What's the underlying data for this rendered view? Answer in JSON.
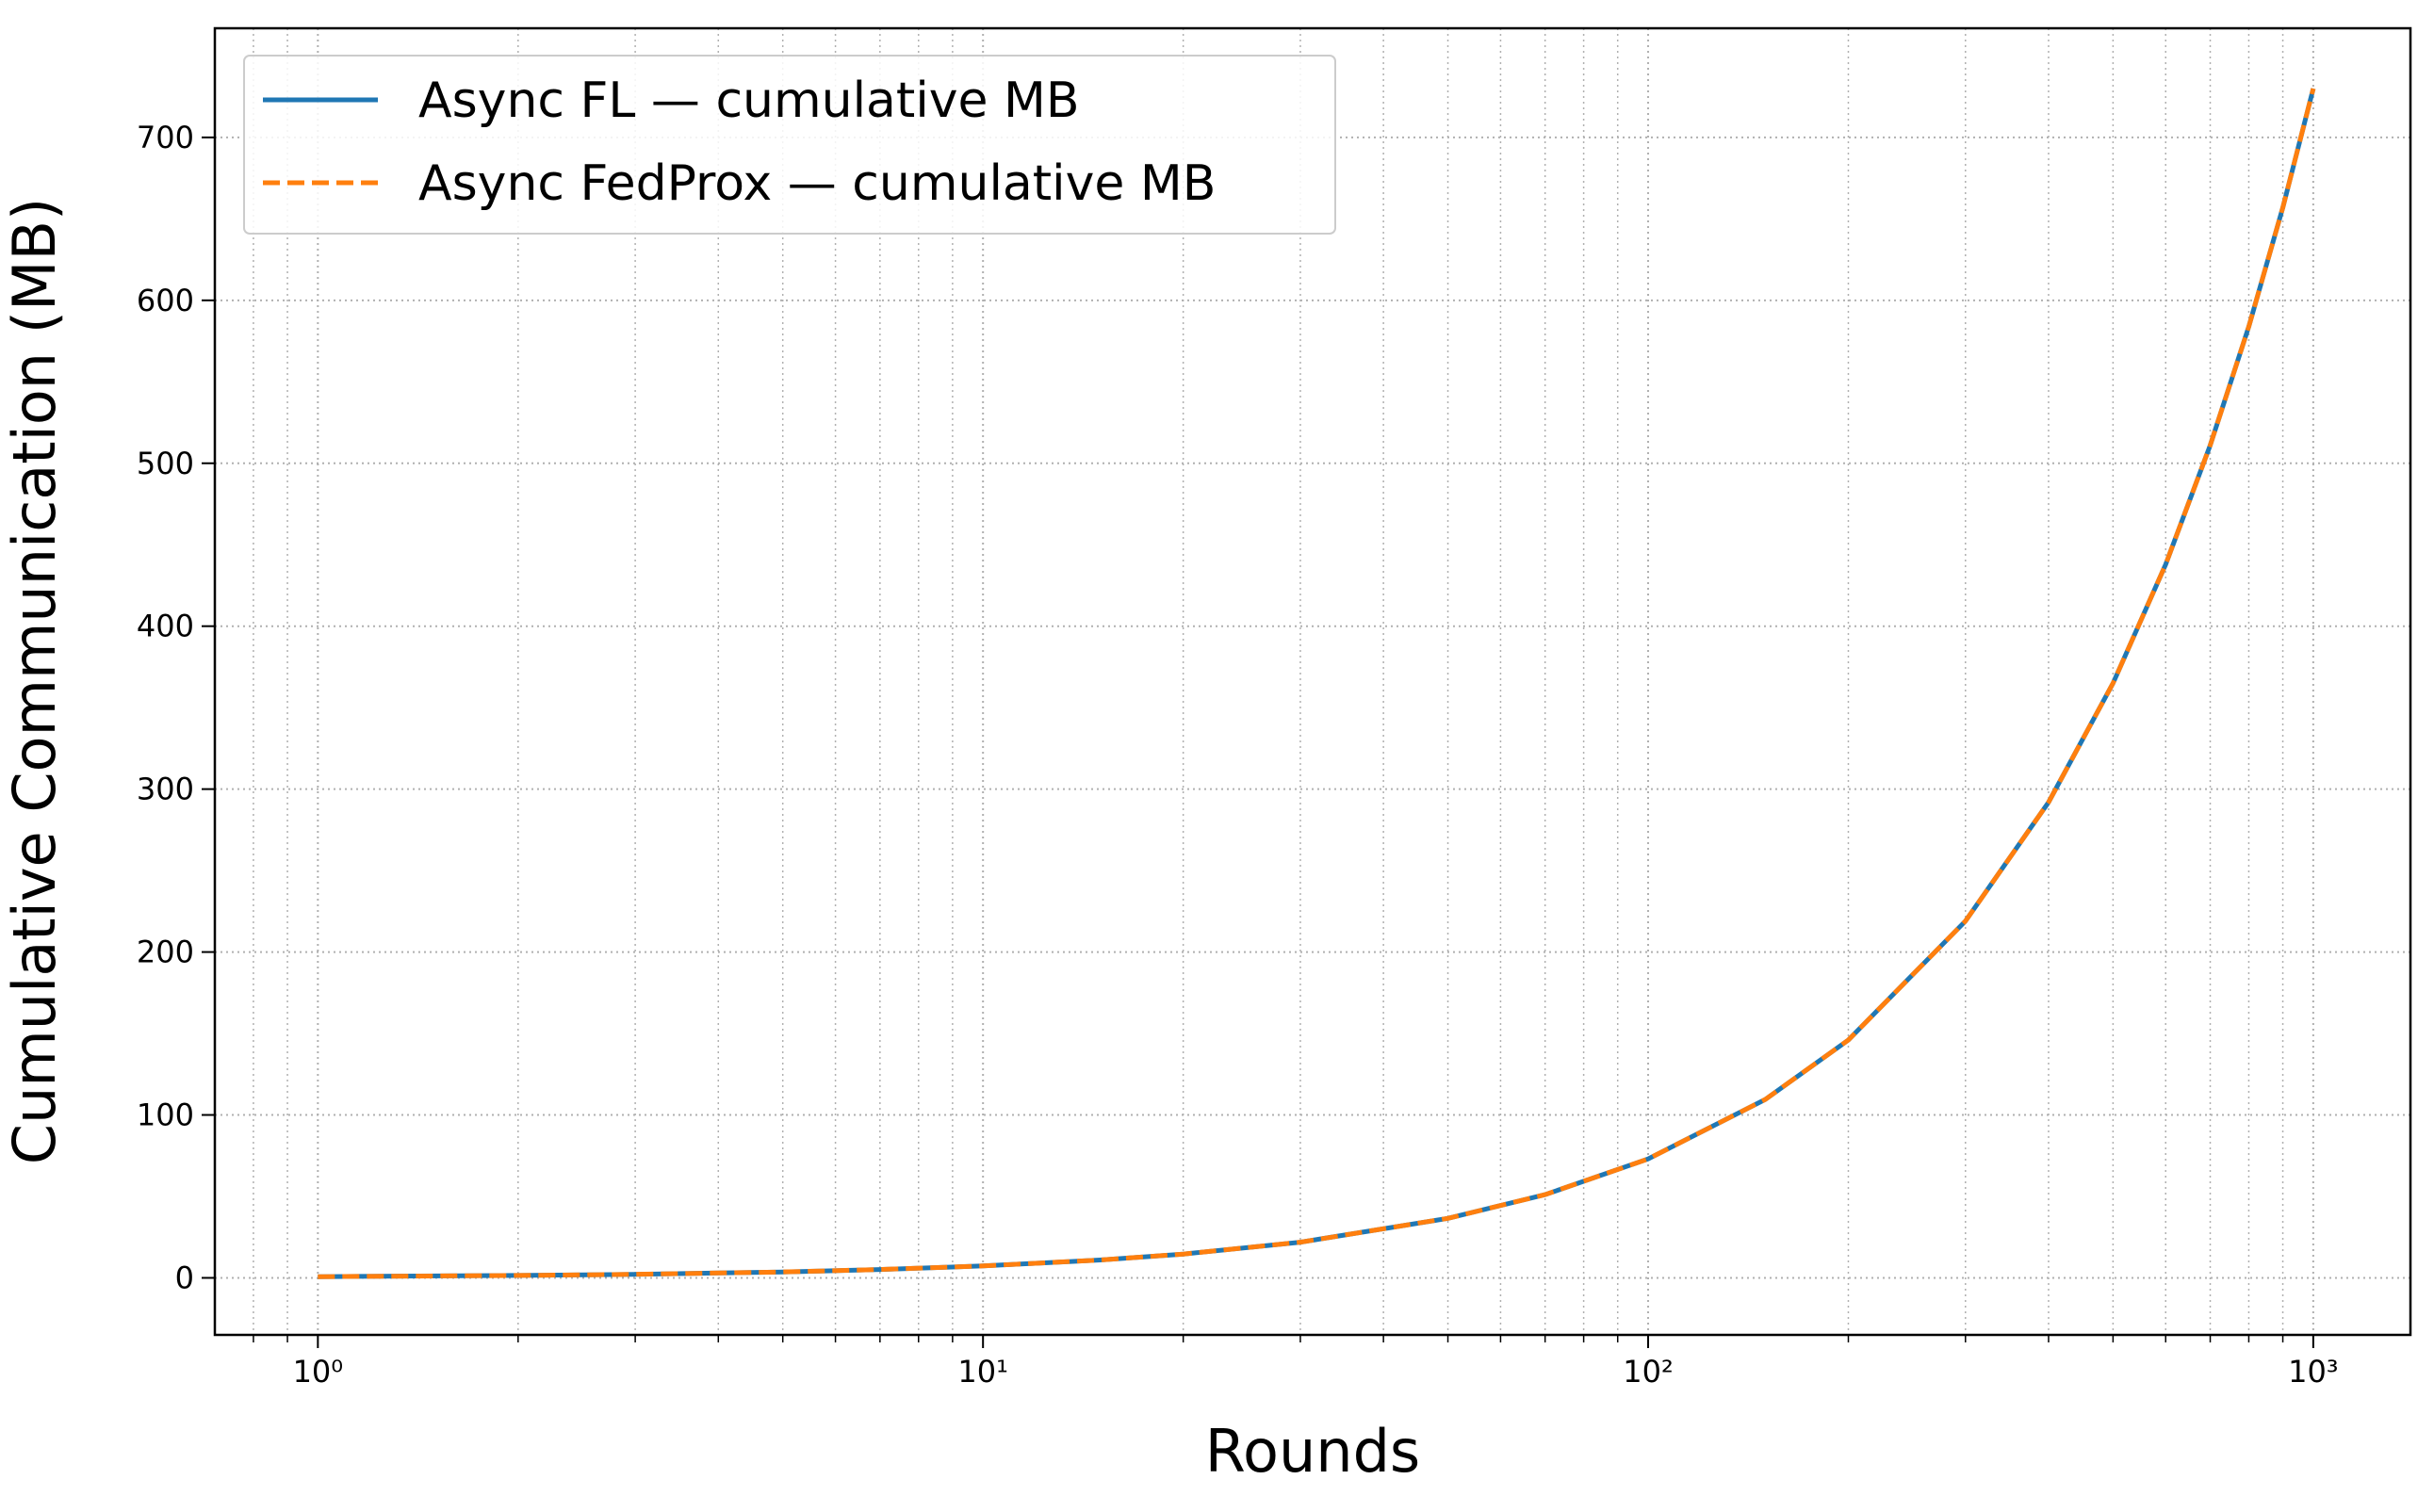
{
  "chart_data": {
    "type": "line",
    "xlabel": "Rounds",
    "ylabel": "Cumulative Communication (MB)",
    "xscale": "log",
    "x": [
      1,
      2,
      3,
      5,
      7,
      10,
      15,
      20,
      30,
      50,
      70,
      100,
      150,
      200,
      300,
      400,
      500,
      600,
      700,
      800,
      900,
      1000
    ],
    "series": [
      {
        "name": "Async FL — cumulative MB",
        "color": "#1f77b4",
        "dash": "solid",
        "values": [
          0.73,
          1.46,
          2.19,
          3.65,
          5.11,
          7.3,
          10.95,
          14.6,
          21.9,
          36.5,
          51.1,
          73,
          109.5,
          146,
          219,
          292,
          365,
          438,
          511,
          584,
          657,
          730
        ]
      },
      {
        "name": "Async FedProx — cumulative MB",
        "color": "#ff7f0e",
        "dash": "dashed",
        "values": [
          0.73,
          1.46,
          2.19,
          3.65,
          5.11,
          7.3,
          10.95,
          14.6,
          21.9,
          36.5,
          51.1,
          73,
          109.5,
          146,
          219,
          292,
          365,
          438,
          511,
          584,
          657,
          730
        ]
      }
    ],
    "xlim": [
      0.7,
      1400
    ],
    "ylim": [
      -35,
      767
    ],
    "xticks": [
      {
        "value": 1,
        "label": "10⁰"
      },
      {
        "value": 10,
        "label": "10¹"
      },
      {
        "value": 100,
        "label": "10²"
      },
      {
        "value": 1000,
        "label": "10³"
      }
    ],
    "xminorticks": [
      0.8,
      0.9,
      2,
      3,
      4,
      5,
      6,
      7,
      8,
      9,
      20,
      30,
      40,
      50,
      60,
      70,
      80,
      90,
      200,
      300,
      400,
      500,
      600,
      700,
      800,
      900
    ],
    "yticks": [
      0,
      100,
      200,
      300,
      400,
      500,
      600,
      700
    ],
    "grid": true,
    "legend": "upper left"
  }
}
